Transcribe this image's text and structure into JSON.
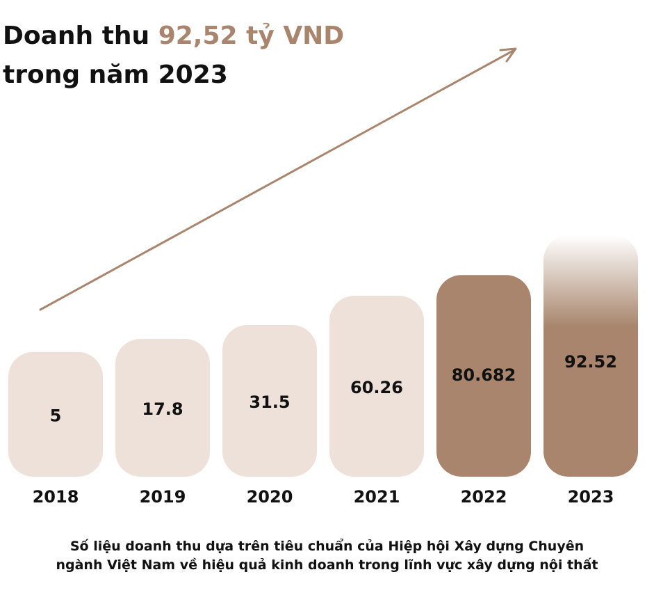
{
  "headline": {
    "line1_prefix": "Doanh thu ",
    "line1_accent": "92,52 tỷ VND",
    "line2": "trong năm 2023"
  },
  "footnote": {
    "line1": "Số liệu doanh thu dựa trên tiêu chuẩn của Hiệp hội Xây dựng Chuyên",
    "line2": "ngành Việt Nam về hiệu quả kinh doanh trong lĩnh vực xây dựng nội thất"
  },
  "colors": {
    "light_bar": "#ede1d9",
    "dark_bar": "#a8856c",
    "accent_text": "#a8856c",
    "trend_arrow": "#a8856c",
    "text": "#111111"
  },
  "chart_data": {
    "type": "bar",
    "categories": [
      "2018",
      "2019",
      "2020",
      "2021",
      "2022",
      "2023"
    ],
    "values": [
      5,
      17.8,
      31.5,
      60.26,
      80.682,
      92.52
    ],
    "value_labels": [
      "5",
      "17.8",
      "31.5",
      "60.26",
      "80.682",
      "92.52"
    ],
    "highlighted": [
      false,
      false,
      false,
      false,
      true,
      true
    ],
    "last_bar_fades_to_top": true,
    "trend_arrow": true,
    "title": "",
    "xlabel": "",
    "ylabel": "",
    "grid": false,
    "legend": "none"
  }
}
